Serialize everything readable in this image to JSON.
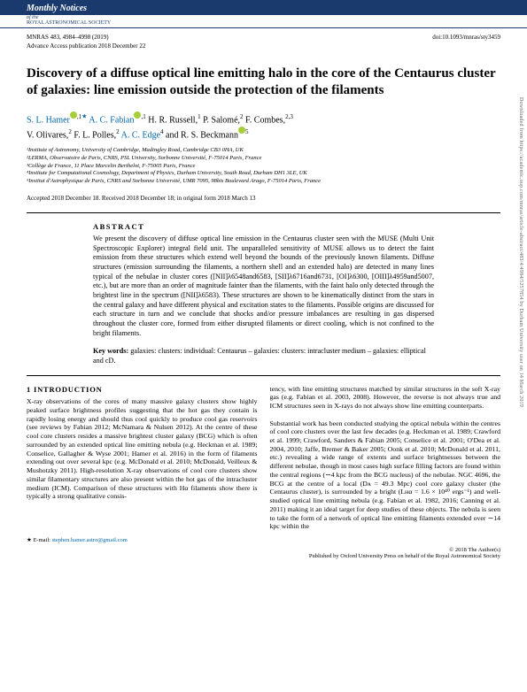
{
  "journal": {
    "banner_title": "Monthly Notices",
    "banner_sub1": "of the",
    "banner_sub2": "ROYAL ASTRONOMICAL SOCIETY",
    "citation": "MNRAS 483, 4984–4998 (2019)",
    "doi": "doi:10.1093/mnras/sty3459",
    "advance": "Advance Access publication 2018 December 22"
  },
  "title": "Discovery of a diffuse optical line emitting halo in the core of the Centaurus cluster of galaxies: line emission outside the protection of the filaments",
  "authors": {
    "a1": "S. L. Hamer",
    "a1_aff": "1",
    "a1_star": "★",
    "a2": "A. C. Fabian",
    "a2_aff": "1",
    "a3": "H. R. Russell,",
    "a3_aff": "1",
    "a4": "P. Salomé,",
    "a4_aff": "2",
    "a5": "F. Combes,",
    "a5_aff": "2,3",
    "a6": "V. Olivares,",
    "a6_aff": "2",
    "a7": "F. L. Polles,",
    "a7_aff": "2",
    "a8": "A. C. Edge",
    "a8_aff": "4",
    "a9": "and R. S. Beckmann",
    "a9_aff": "5"
  },
  "affiliations": {
    "l1": "¹Institute of Astronomy, University of Cambridge, Madingley Road, Cambridge CB3 0HA, UK",
    "l2": "²LERMA, Observatoire de Paris, CNRS, PSL University, Sorbonne Université, F-75014 Paris, France",
    "l3": "³Collège de France, 11 Place Marcelin Berthelot, F-75005 Paris, France",
    "l4": "⁴Institute for Computational Cosmology, Department of Physics, Durham University, South Road, Durham DH1 3LE, UK",
    "l5": "⁵Institut d'Astrophysique de Paris, CNRS and Sorbonne Université, UMR 7095, 98bis Boulevard Arago, F-75014 Paris, France"
  },
  "dates": "Accepted 2018 December 18. Received 2018 December 18; in original form 2018 March 13",
  "abstract": {
    "heading": "ABSTRACT",
    "text": "We present the discovery of diffuse optical line emission in the Centaurus cluster seen with the MUSE (Multi Unit Spectroscopic Explorer) integral field unit. The unparalleled sensitivity of MUSE allows us to detect the faint emission from these structures which extend well beyond the bounds of the previously known filaments. Diffuse structures (emission surrounding the filaments, a northern shell and an extended halo) are detected in many lines typical of the nebulae in cluster cores ([NII]λ6548and6583, [SII]λ6716and6731, [OI]λ6300, [OIII]λ4959and5007, etc.), but are more than an order of magnitude fainter than the filaments, with the faint halo only detected through the brightest line in the spectrum ([NII]λ6583). These structures are shown to be kinematically distinct from the stars in the central galaxy and have different physical and excitation states to the filaments. Possible origins are discussed for each structure in turn and we conclude that shocks and/or pressure imbalances are resulting in gas dispersed throughout the cluster core, formed from either disrupted filaments or direct cooling, which is not confined to the bright filaments."
  },
  "keywords": {
    "label": "Key words:",
    "text": " galaxies: clusters: individual: Centaurus – galaxies: clusters: intracluster medium – galaxies: elliptical and cD."
  },
  "section1": {
    "heading": "1 INTRODUCTION",
    "col1": "X-ray observations of the cores of many massive galaxy clusters show highly peaked surface brightness profiles suggesting that the hot gas they contain is rapidly losing energy and should thus cool quickly to produce cool gas reservoirs (see reviews by Fabian 2012; McNamara & Nulsen 2012). At the centre of these cool core clusters resides a massive brightest cluster galaxy (BCG) which is often surrounded by an extended optical line emitting nebula (e.g. Heckman et al. 1989; Conselice, Gallagher & Wyse 2001; Hamer et al. 2016) in the form of filaments extending out over several kpc (e.g. McDonald et al. 2010; McDonald, Veilleux & Mushotzky 2011). High-resolution X-ray observations of cool core clusters show similar filamentary structures are also present within the hot gas of the intracluster medium (ICM). Comparison of these structures with Hα filaments show there is typically a strong qualitative consis-",
    "col2": "tency, with line emitting structures matched by similar structures in the soft X-ray gas (e.g. Fabian et al. 2003, 2008). However, the reverse is not always true and ICM structures seen in X-rays do not always show line emitting counterparts.\n\nSubstantial work has been conducted studying the optical nebula within the centres of cool core clusters over the last few decades (e.g. Heckman et al. 1989; Crawford et al. 1999; Crawford, Sanders & Fabian 2005; Conselice et al. 2001; O'Dea et al. 2004, 2010; Jaffe, Bremer & Baker 2005; Oonk et al. 2010; McDonald et al. 2011, etc.) revealing a wide range of extents and surface brightnesses between the different nebulae, though in most cases high surface filling factors are found within the central regions (∼4 kpc from the BCG nucleus) of the nebulae. NGC 4696, the BCG at the centre of a local (Dᴀ = 49.3 Mpc) cool core galaxy cluster (the Centaurus cluster), is surrounded by a bright (Lʜα = 1.6 × 10⁴⁰ ergs⁻¹) and well-studied optical line emitting nebula (e.g. Fabian et al. 1982, 2016; Canning et al. 2011) making it an ideal target for deep studies of these objects. The nebula is seen to take the form of a network of optical line emitting filaments extended over ∼14 kpc within the"
  },
  "email": {
    "star": "★",
    "label": "E-mail: ",
    "address": "stephen.hamer.astro@gmail.com"
  },
  "footer": {
    "copyright": "© 2018 The Author(s)",
    "publisher": "Published by Oxford University Press on behalf of the Royal Astronomical Society"
  },
  "sidebar": "Downloaded from https://academic.oup.com/mnras/article-abstract/483/4/4984/5257854 by Durham University user on 14 March 2019"
}
